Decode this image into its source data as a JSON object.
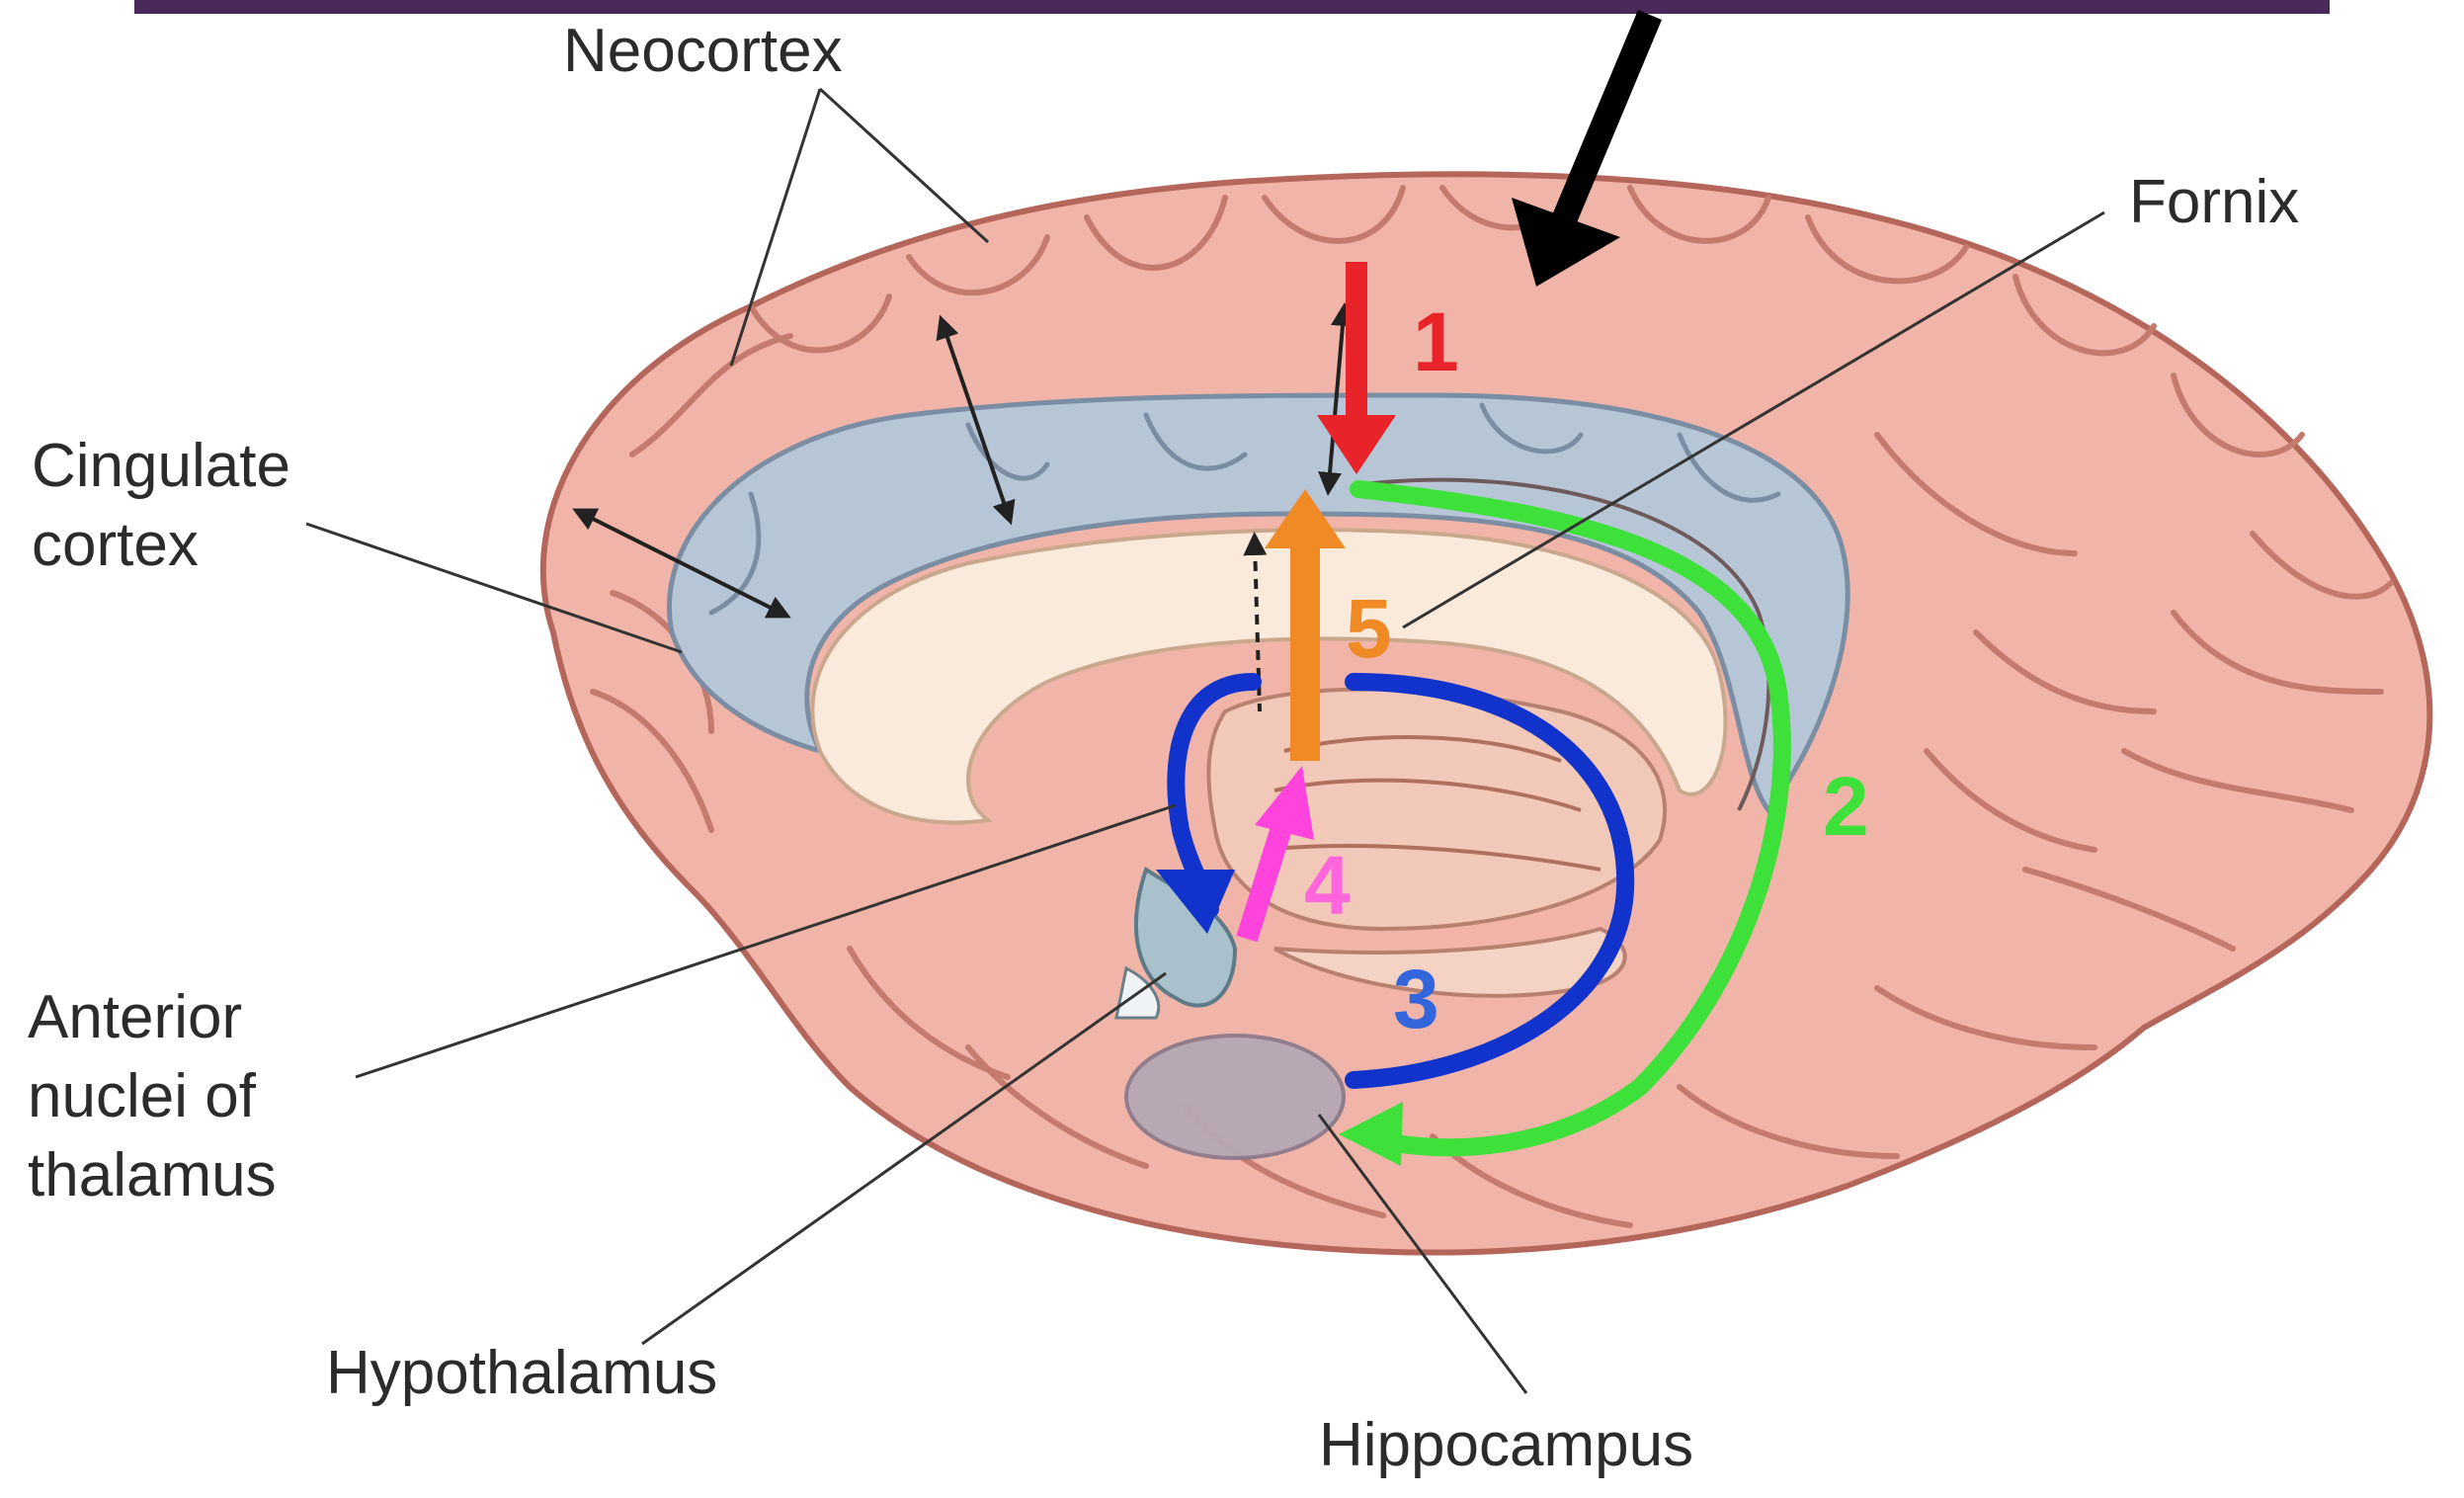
{
  "labels": {
    "neocortex": "Neocortex",
    "fornix": "Fornix",
    "cingulate_line1": "Cingulate",
    "cingulate_line2": "cortex",
    "anterior_line1": "Anterior",
    "anterior_line2": "nuclei of",
    "anterior_line3": "thalamus",
    "hypothalamus": "Hypothalamus",
    "hippocampus": "Hippocampus"
  },
  "steps": [
    {
      "label": "1",
      "color": "#e8242a"
    },
    {
      "label": "2",
      "color": "#3ee03a"
    },
    {
      "label": "3",
      "color": "#3366dd"
    },
    {
      "label": "4",
      "color": "#ff66dd"
    },
    {
      "label": "5",
      "color": "#f08a24"
    }
  ],
  "colors": {
    "top_bar": "#4a2a5a",
    "cortex": "#f0b5a8",
    "cortex_outline": "#b5665a",
    "cingulate": "#b7c6d6",
    "corpus_callosum": "#faeadc",
    "loop_blue": "#1133cc",
    "arrow_black": "#000000"
  }
}
